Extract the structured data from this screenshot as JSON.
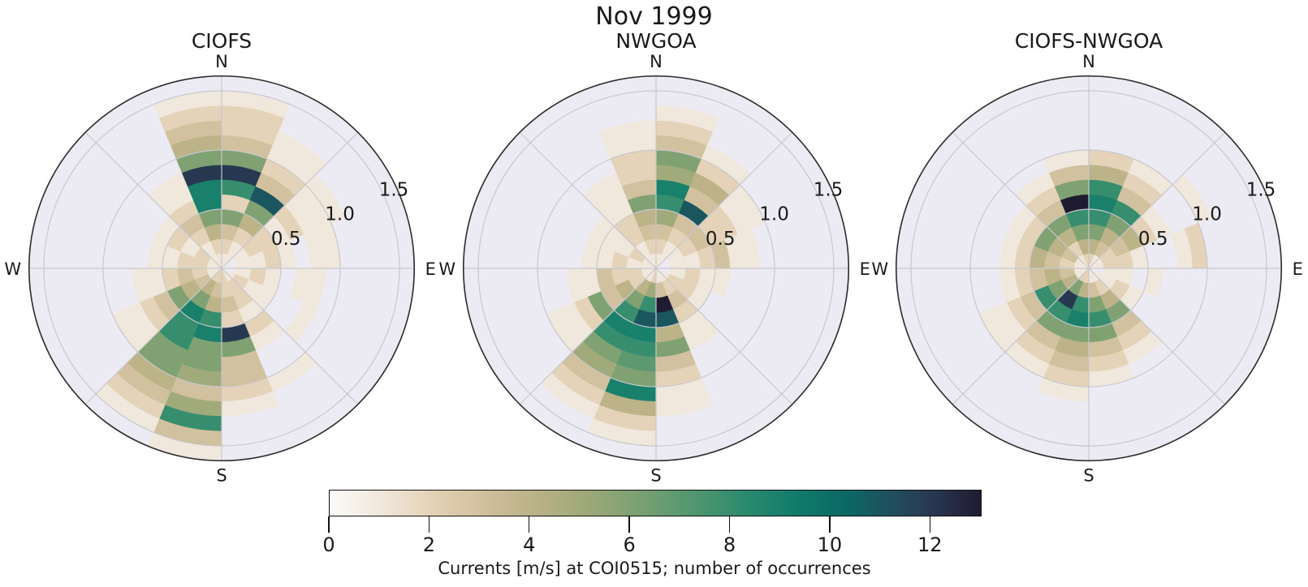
{
  "suptitle": "Nov 1999",
  "axes_style": {
    "background": "#ecebf3",
    "grid": "#c8c7ce",
    "spine": "#2b2b2b",
    "text": "#1a1a1a"
  },
  "colormap": {
    "vmin": 0,
    "vmax": 13,
    "stops": [
      [
        0.0,
        "#fbfaf9"
      ],
      [
        0.08,
        "#f0e7db"
      ],
      [
        0.16,
        "#e3d1b5"
      ],
      [
        0.24,
        "#d0bf9b"
      ],
      [
        0.32,
        "#b8b186"
      ],
      [
        0.4,
        "#9ca878"
      ],
      [
        0.48,
        "#78a072"
      ],
      [
        0.56,
        "#519670"
      ],
      [
        0.64,
        "#2b8a6e"
      ],
      [
        0.72,
        "#0f7b6b"
      ],
      [
        0.8,
        "#0c6663"
      ],
      [
        0.87,
        "#234c5c"
      ],
      [
        0.93,
        "#283650"
      ],
      [
        1.0,
        "#1f1b30"
      ]
    ]
  },
  "colorbar": {
    "tick_values": [
      0,
      2,
      4,
      6,
      8,
      10,
      12
    ],
    "tick_labels": [
      "0",
      "2",
      "4",
      "6",
      "8",
      "10",
      "12"
    ],
    "label": "Currents [m/s] at COI0515; number of occurrences"
  },
  "chart_data": [
    {
      "type": "windrose-polar-histogram",
      "title": "CIOFS",
      "direction_labels": {
        "top": "N",
        "right": "E",
        "bottom": "S",
        "left": "W"
      },
      "r_ticks": [
        0.5,
        1.0,
        1.5
      ],
      "r_tick_labels": [
        "0.5",
        "1.0",
        "1.5"
      ],
      "rmax": 1.625,
      "radial_bin_width": 0.125,
      "radial_units": "m/s",
      "value_units": "number of occurrences",
      "sector_labels": [
        "N",
        "NNE",
        "NE",
        "ENE",
        "E",
        "ESE",
        "SE",
        "SSE",
        "S",
        "SSW",
        "SW",
        "WSW",
        "W",
        "WNW",
        "NW",
        "NNW"
      ],
      "sectors_note": "16 sectors of 22.5 deg, clockwise, each starting at the labeled compass angle; 13 radial bins of 0.125 m/s; value = occurrences (0 = empty bin)",
      "sectors": [
        [
          1,
          2,
          3,
          6,
          2,
          8,
          12,
          6,
          3,
          2,
          2,
          1,
          0
        ],
        [
          1,
          1,
          2,
          4,
          6,
          11,
          3,
          2,
          1,
          1,
          0,
          0,
          0
        ],
        [
          0,
          1,
          2,
          2,
          1,
          2,
          1,
          1,
          1,
          0,
          0,
          0,
          0
        ],
        [
          0,
          1,
          1,
          2,
          1,
          0,
          1,
          1,
          0,
          0,
          0,
          0,
          0
        ],
        [
          0,
          1,
          2,
          1,
          0,
          1,
          1,
          0,
          0,
          0,
          0,
          0,
          0
        ],
        [
          1,
          2,
          1,
          1,
          0,
          0,
          1,
          0,
          0,
          0,
          0,
          0,
          0
        ],
        [
          1,
          2,
          2,
          1,
          2,
          1,
          0,
          0,
          1,
          0,
          0,
          0,
          0
        ],
        [
          2,
          2,
          3,
          2,
          12,
          6,
          3,
          3,
          2,
          1,
          0,
          0,
          0
        ],
        [
          2,
          3,
          4,
          8,
          9,
          6,
          6,
          5,
          3,
          5,
          8,
          3,
          1
        ],
        [
          2,
          4,
          6,
          9,
          8,
          8,
          6,
          6,
          4,
          3,
          2,
          1,
          0
        ],
        [
          1,
          3,
          4,
          6,
          3,
          2,
          1,
          1,
          0,
          0,
          0,
          0,
          0
        ],
        [
          1,
          2,
          3,
          2,
          1,
          1,
          0,
          0,
          0,
          0,
          0,
          0,
          0
        ],
        [
          1,
          2,
          2,
          1,
          1,
          0,
          0,
          0,
          0,
          0,
          0,
          0,
          0
        ],
        [
          1,
          2,
          1,
          2,
          1,
          0,
          0,
          0,
          0,
          0,
          0,
          0,
          0
        ],
        [
          1,
          1,
          2,
          3,
          2,
          1,
          1,
          0,
          0,
          0,
          0,
          0,
          0
        ],
        [
          1,
          2,
          4,
          6,
          9,
          9,
          12,
          6,
          4,
          3,
          2,
          1,
          0
        ]
      ]
    },
    {
      "type": "windrose-polar-histogram",
      "title": "NWGOA",
      "direction_labels": {
        "top": "N",
        "right": "E",
        "bottom": "S",
        "left": "W"
      },
      "r_ticks": [
        0.5,
        1.0,
        1.5
      ],
      "r_tick_labels": [
        "0.5",
        "1.0",
        "1.5"
      ],
      "rmax": 1.625,
      "radial_bin_width": 0.125,
      "radial_units": "m/s",
      "value_units": "number of occurrences",
      "sector_labels": [
        "N",
        "NNE",
        "NE",
        "ENE",
        "E",
        "ESE",
        "SE",
        "SSE",
        "S",
        "SSW",
        "SW",
        "WSW",
        "W",
        "WNW",
        "NW",
        "NNW"
      ],
      "sectors_note": "16 sectors of 22.5 deg, clockwise, each starting at the labeled compass angle; 13 radial bins of 0.125 m/s; value = occurrences (0 = empty bin)",
      "sectors": [
        [
          1,
          2,
          3,
          5,
          8,
          9,
          5,
          6,
          3,
          2,
          1,
          0,
          0
        ],
        [
          1,
          1,
          2,
          3,
          11,
          3,
          4,
          2,
          1,
          0,
          0,
          0,
          0
        ],
        [
          0,
          1,
          2,
          3,
          2,
          2,
          1,
          1,
          0,
          0,
          0,
          0,
          0
        ],
        [
          0,
          1,
          1,
          2,
          3,
          1,
          1,
          0,
          0,
          0,
          0,
          0,
          0
        ],
        [
          0,
          1,
          2,
          1,
          1,
          0,
          0,
          0,
          0,
          0,
          0,
          0,
          0
        ],
        [
          1,
          2,
          2,
          1,
          0,
          0,
          0,
          0,
          0,
          0,
          0,
          0,
          0
        ],
        [
          1,
          2,
          3,
          2,
          1,
          1,
          0,
          0,
          0,
          0,
          0,
          0,
          0
        ],
        [
          1,
          3,
          13,
          11,
          4,
          6,
          3,
          2,
          1,
          1,
          0,
          0,
          0
        ],
        [
          2,
          5,
          8,
          11,
          9,
          8,
          7,
          6,
          9,
          4,
          2,
          1,
          0
        ],
        [
          1,
          4,
          6,
          8,
          9,
          8,
          6,
          5,
          3,
          2,
          1,
          0,
          0
        ],
        [
          1,
          2,
          4,
          3,
          6,
          2,
          1,
          1,
          0,
          0,
          0,
          0,
          0
        ],
        [
          1,
          2,
          2,
          3,
          1,
          1,
          0,
          0,
          0,
          0,
          0,
          0,
          0
        ],
        [
          1,
          1,
          2,
          1,
          1,
          0,
          0,
          0,
          0,
          0,
          0,
          0,
          0
        ],
        [
          1,
          2,
          1,
          1,
          1,
          0,
          0,
          0,
          0,
          0,
          0,
          0,
          0
        ],
        [
          1,
          1,
          2,
          2,
          1,
          1,
          1,
          0,
          0,
          0,
          0,
          0,
          0
        ],
        [
          1,
          2,
          3,
          4,
          6,
          3,
          2,
          2,
          1,
          1,
          0,
          0,
          0
        ]
      ]
    },
    {
      "type": "windrose-polar-histogram",
      "title": "CIOFS-NWGOA",
      "direction_labels": {
        "top": "N",
        "right": "E",
        "bottom": "S",
        "left": "W"
      },
      "r_ticks": [
        0.5,
        1.0,
        1.5
      ],
      "r_tick_labels": [
        "0.5",
        "1.0",
        "1.5"
      ],
      "rmax": 1.625,
      "radial_bin_width": 0.125,
      "radial_units": "m/s",
      "value_units": "number of occurrences",
      "sector_labels": [
        "N",
        "NNE",
        "NE",
        "ENE",
        "E",
        "ESE",
        "SE",
        "SSE",
        "S",
        "SSW",
        "SW",
        "WSW",
        "W",
        "WNW",
        "NW",
        "NNW"
      ],
      "sectors_note": "16 sectors of 22.5 deg, clockwise, each starting at the labeled compass angle; 13 radial bins of 0.125 m/s; value = occurrences (0 = empty bin)",
      "sectors": [
        [
          2,
          4,
          6,
          8,
          9,
          8,
          4,
          2,
          0,
          0,
          0,
          0,
          0
        ],
        [
          1,
          3,
          4,
          6,
          8,
          3,
          2,
          1,
          0,
          0,
          0,
          0,
          0
        ],
        [
          1,
          2,
          3,
          4,
          2,
          1,
          0,
          0,
          1,
          0,
          0,
          0,
          0
        ],
        [
          1,
          2,
          2,
          1,
          0,
          0,
          1,
          2,
          0,
          0,
          0,
          0,
          0
        ],
        [
          0,
          1,
          1,
          0,
          1,
          0,
          0,
          0,
          0,
          0,
          0,
          0,
          0
        ],
        [
          1,
          1,
          2,
          1,
          0,
          0,
          0,
          0,
          0,
          0,
          0,
          0,
          0
        ],
        [
          1,
          2,
          4,
          6,
          3,
          2,
          1,
          0,
          0,
          0,
          0,
          0,
          0
        ],
        [
          1,
          3,
          6,
          8,
          6,
          3,
          2,
          1,
          0,
          0,
          0,
          0,
          0
        ],
        [
          2,
          4,
          8,
          9,
          6,
          4,
          3,
          2,
          1,
          0,
          0,
          0,
          0
        ],
        [
          2,
          6,
          12,
          8,
          6,
          3,
          2,
          1,
          0,
          0,
          0,
          0,
          0
        ],
        [
          1,
          4,
          6,
          8,
          3,
          2,
          1,
          1,
          0,
          0,
          0,
          0,
          0
        ],
        [
          1,
          3,
          4,
          3,
          2,
          1,
          0,
          0,
          0,
          0,
          0,
          0,
          0
        ],
        [
          1,
          2,
          3,
          4,
          2,
          1,
          0,
          0,
          0,
          0,
          0,
          0,
          0
        ],
        [
          1,
          3,
          4,
          6,
          2,
          1,
          0,
          0,
          0,
          0,
          0,
          0,
          0
        ],
        [
          1,
          2,
          4,
          6,
          3,
          2,
          1,
          0,
          0,
          0,
          0,
          0,
          0
        ],
        [
          2,
          4,
          6,
          8,
          13,
          6,
          3,
          1,
          0,
          0,
          0,
          0,
          0
        ]
      ]
    }
  ]
}
